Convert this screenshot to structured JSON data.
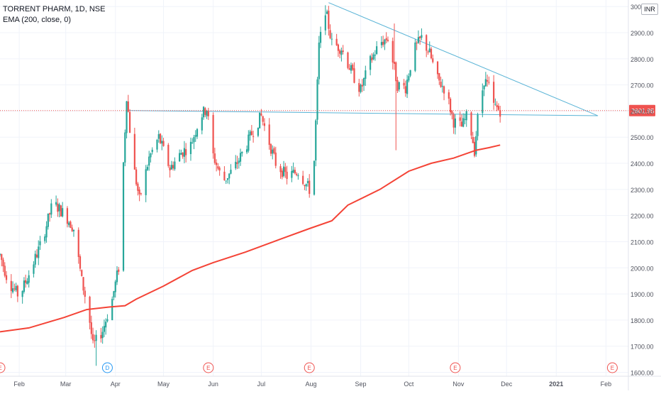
{
  "header": {
    "symbol_line": "TORRENT PHARM, 1D, NSE",
    "indicator_line": "EMA (200, close, 0)",
    "currency": "INR"
  },
  "colors": {
    "up": "#26a69a",
    "down": "#ef5350",
    "ema": "#f44336",
    "trendline": "#5ab4d6",
    "grid": "#f0f3fa",
    "axis_text": "#50535e",
    "last_price_bg": "#ef5350"
  },
  "chart_data": {
    "type": "candlestick",
    "title": "TORRENT PHARM, 1D, NSE",
    "ylabel": "INR",
    "ylim": [
      1585,
      3025
    ],
    "y_ticks": [
      1600,
      1700,
      1800,
      1900,
      2000,
      2100,
      2200,
      2300,
      2400,
      2500,
      2600,
      2700,
      2800,
      2900,
      3000
    ],
    "y_tick_labels": [
      "1600.00",
      "1700.00",
      "1800.00",
      "1900.00",
      "2000.00",
      "2100.00",
      "2200.00",
      "2300.00",
      "2400.00",
      "2500.00",
      "2600.00",
      "2700.00",
      "2800.00",
      "2900.00",
      "3000.00"
    ],
    "x_labels": [
      "Feb",
      "Mar",
      "Apr",
      "May",
      "Jun",
      "Jul",
      "Aug",
      "Sep",
      "Oct",
      "Nov",
      "Dec",
      "2021",
      "Feb"
    ],
    "last_price": 2601.95,
    "last_price_label": "2601.95",
    "price_path": [
      [
        "2020-01-20",
        2050
      ],
      [
        "2020-01-25",
        1950
      ],
      [
        "2020-02-01",
        1890
      ],
      [
        "2020-02-08",
        1990
      ],
      [
        "2020-02-15",
        2100
      ],
      [
        "2020-02-22",
        2250
      ],
      [
        "2020-03-01",
        2200
      ],
      [
        "2020-03-06",
        2150
      ],
      [
        "2020-03-11",
        1950
      ],
      [
        "2020-03-15",
        1840
      ],
      [
        "2020-03-18",
        1700
      ],
      [
        "2020-03-24",
        1760
      ],
      [
        "2020-03-30",
        1880
      ],
      [
        "2020-04-03",
        2000
      ],
      [
        "2020-04-06",
        2400
      ],
      [
        "2020-04-08",
        2660
      ],
      [
        "2020-04-12",
        2400
      ],
      [
        "2020-04-16",
        2260
      ],
      [
        "2020-04-22",
        2420
      ],
      [
        "2020-04-28",
        2500
      ],
      [
        "2020-05-05",
        2380
      ],
      [
        "2020-05-12",
        2440
      ],
      [
        "2020-05-18",
        2470
      ],
      [
        "2020-05-24",
        2580
      ],
      [
        "2020-05-28",
        2610
      ],
      [
        "2020-06-01",
        2430
      ],
      [
        "2020-06-07",
        2330
      ],
      [
        "2020-06-14",
        2380
      ],
      [
        "2020-06-21",
        2460
      ],
      [
        "2020-06-27",
        2540
      ],
      [
        "2020-07-01",
        2580
      ],
      [
        "2020-07-05",
        2500
      ],
      [
        "2020-07-10",
        2400
      ],
      [
        "2020-07-17",
        2350
      ],
      [
        "2020-07-24",
        2370
      ],
      [
        "2020-07-28",
        2330
      ],
      [
        "2020-07-31",
        2300
      ],
      [
        "2020-08-03",
        2410
      ],
      [
        "2020-08-06",
        2850
      ],
      [
        "2020-08-10",
        2990
      ],
      [
        "2020-08-14",
        2860
      ],
      [
        "2020-08-20",
        2840
      ],
      [
        "2020-08-27",
        2740
      ],
      [
        "2020-09-01",
        2680
      ],
      [
        "2020-09-07",
        2790
      ],
      [
        "2020-09-13",
        2860
      ],
      [
        "2020-09-18",
        2880
      ],
      [
        "2020-09-24",
        2700
      ],
      [
        "2020-09-29",
        2690
      ],
      [
        "2020-10-04",
        2830
      ],
      [
        "2020-10-09",
        2880
      ],
      [
        "2020-10-14",
        2820
      ],
      [
        "2020-10-19",
        2720
      ],
      [
        "2020-10-24",
        2680
      ],
      [
        "2020-10-29",
        2560
      ],
      [
        "2020-11-03",
        2540
      ],
      [
        "2020-11-07",
        2590
      ],
      [
        "2020-11-11",
        2450
      ],
      [
        "2020-11-13",
        2570
      ],
      [
        "2020-11-17",
        2720
      ],
      [
        "2020-11-20",
        2690
      ],
      [
        "2020-11-23",
        2620
      ],
      [
        "2020-11-27",
        2602
      ]
    ],
    "wick_extremes": [
      [
        "2020-03-20",
        1625,
        "low"
      ],
      [
        "2020-08-10",
        3005,
        "high"
      ],
      [
        "2020-09-23",
        2450,
        "low"
      ],
      [
        "2020-09-22",
        2935,
        "high"
      ],
      [
        "2020-10-11",
        2930,
        "high"
      ],
      [
        "2020-11-12",
        2425,
        "low"
      ],
      [
        "2020-11-18",
        2750,
        "high"
      ]
    ],
    "series": [
      {
        "name": "EMA (200, close, 0)",
        "type": "line",
        "points": [
          [
            "2020-01-20",
            1755
          ],
          [
            "2020-02-07",
            1770
          ],
          [
            "2020-02-29",
            1810
          ],
          [
            "2020-03-14",
            1840
          ],
          [
            "2020-03-28",
            1850
          ],
          [
            "2020-04-07",
            1855
          ],
          [
            "2020-04-14",
            1880
          ],
          [
            "2020-05-01",
            1930
          ],
          [
            "2020-05-19",
            1990
          ],
          [
            "2020-06-01",
            2020
          ],
          [
            "2020-06-21",
            2060
          ],
          [
            "2020-07-13",
            2110
          ],
          [
            "2020-07-31",
            2150
          ],
          [
            "2020-08-14",
            2180
          ],
          [
            "2020-08-24",
            2240
          ],
          [
            "2020-09-13",
            2300
          ],
          [
            "2020-10-01",
            2370
          ],
          [
            "2020-10-15",
            2400
          ],
          [
            "2020-10-29",
            2420
          ],
          [
            "2020-11-12",
            2450
          ],
          [
            "2020-11-20",
            2460
          ],
          [
            "2020-11-27",
            2470
          ]
        ]
      }
    ],
    "trendlines": [
      {
        "from": [
          "2020-04-09",
          2602
        ],
        "to": [
          "2021-01-27",
          2582
        ]
      },
      {
        "from": [
          "2020-08-12",
          3015
        ],
        "to": [
          "2021-01-27",
          2582
        ]
      }
    ],
    "event_markers": [
      {
        "date": "2020-01-20",
        "label": "E"
      },
      {
        "date": "2020-03-27",
        "label": "D"
      },
      {
        "date": "2020-05-29",
        "label": "E"
      },
      {
        "date": "2020-07-31",
        "label": "E"
      },
      {
        "date": "2020-10-30",
        "label": "E"
      },
      {
        "date": "2021-02-05",
        "label": "E"
      }
    ],
    "grid": true,
    "legend_position": "top-left"
  }
}
